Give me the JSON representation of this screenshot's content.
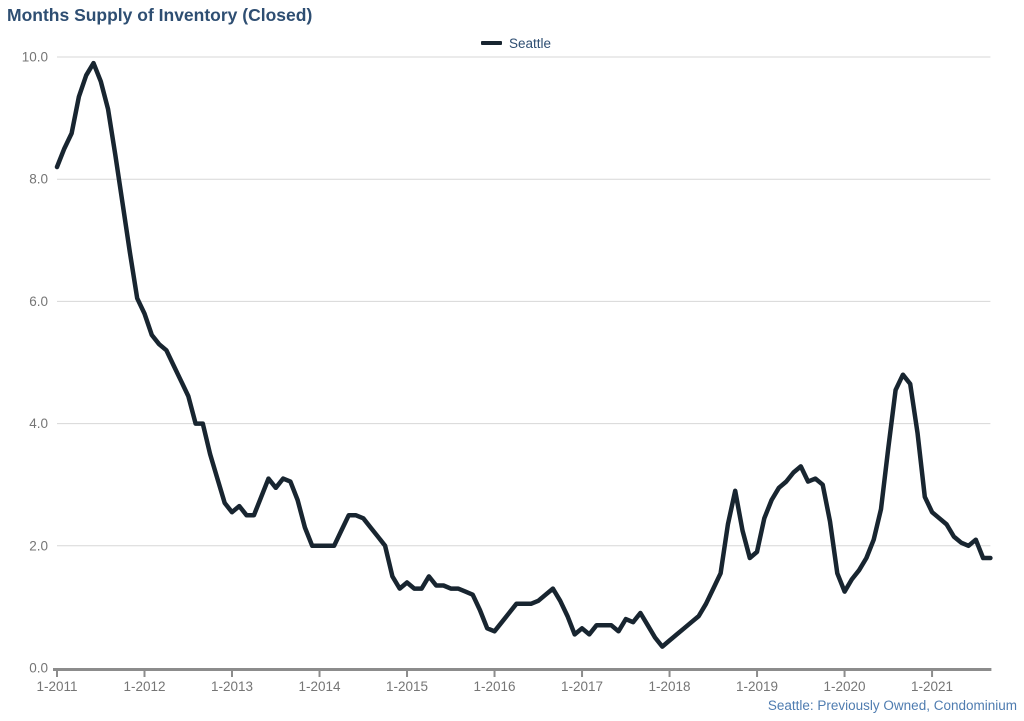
{
  "header": {
    "title": "Months Supply of Inventory (Closed)"
  },
  "legend": {
    "items": [
      {
        "label": "Seattle",
        "color": "#182530"
      }
    ]
  },
  "footnote": {
    "text": "Seattle: Previously Owned, Condominium",
    "color": "#4f7cb0"
  },
  "colors": {
    "title_text": "#2e4e72",
    "series_line": "#182530",
    "axis_line": "#8c8c8c",
    "gridline": "#d7d7d7",
    "tick_label": "#757575",
    "footnote_text": "#4f7cb0"
  },
  "chart_data": {
    "type": "line",
    "title": "Months Supply of Inventory (Closed)",
    "ylabel": "",
    "xlabel": "",
    "ylim": [
      0,
      10
    ],
    "y_tick_labels": [
      "0.0",
      "2.0",
      "4.0",
      "6.0",
      "8.0",
      "10.0"
    ],
    "x_tick_labels": [
      "1-2011",
      "1-2012",
      "1-2013",
      "1-2014",
      "1-2015",
      "1-2016",
      "1-2017",
      "1-2018",
      "1-2019",
      "1-2020",
      "1-2021"
    ],
    "grid": "horizontal",
    "legend_position": "top-center",
    "series": [
      {
        "name": "Seattle",
        "color": "#182530",
        "start_month": "1-2011",
        "frequency": "monthly",
        "values": [
          8.2,
          8.5,
          8.75,
          9.35,
          9.7,
          9.9,
          9.6,
          9.15,
          8.4,
          7.6,
          6.8,
          6.05,
          5.8,
          5.45,
          5.3,
          5.2,
          4.95,
          4.7,
          4.45,
          4.0,
          4.0,
          3.5,
          3.1,
          2.7,
          2.55,
          2.65,
          2.5,
          2.5,
          2.8,
          3.1,
          2.95,
          3.1,
          3.05,
          2.75,
          2.3,
          2.0,
          2.0,
          2.0,
          2.0,
          2.25,
          2.5,
          2.5,
          2.45,
          2.3,
          2.15,
          2.0,
          1.5,
          1.3,
          1.4,
          1.3,
          1.3,
          1.5,
          1.35,
          1.35,
          1.3,
          1.3,
          1.25,
          1.2,
          0.95,
          0.65,
          0.6,
          0.75,
          0.9,
          1.05,
          1.05,
          1.05,
          1.1,
          1.2,
          1.3,
          1.1,
          0.85,
          0.55,
          0.65,
          0.55,
          0.7,
          0.7,
          0.7,
          0.6,
          0.8,
          0.75,
          0.9,
          0.7,
          0.5,
          0.35,
          0.45,
          0.55,
          0.65,
          0.75,
          0.85,
          1.05,
          1.3,
          1.55,
          2.35,
          2.9,
          2.25,
          1.8,
          1.9,
          2.45,
          2.75,
          2.95,
          3.05,
          3.2,
          3.3,
          3.05,
          3.1,
          3.0,
          2.4,
          1.55,
          1.25,
          1.45,
          1.6,
          1.8,
          2.1,
          2.6,
          3.6,
          4.55,
          4.8,
          4.65,
          3.85,
          2.8,
          2.55,
          2.45,
          2.35,
          2.15,
          2.05,
          2.0,
          2.1,
          1.8,
          1.8
        ]
      }
    ]
  }
}
